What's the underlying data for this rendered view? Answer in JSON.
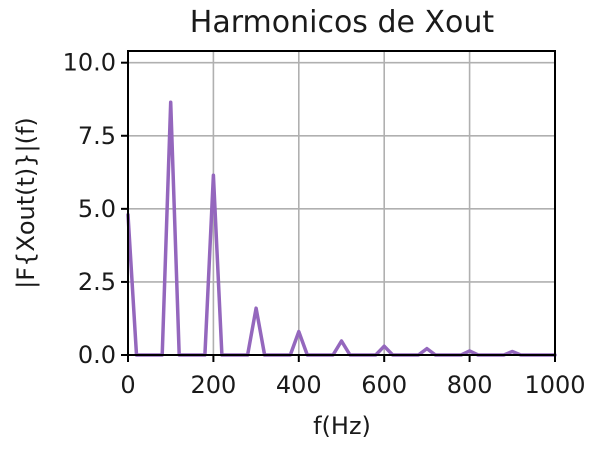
{
  "chart_data": {
    "type": "line",
    "title": "Harmonicos de Xout",
    "xlabel": "f(Hz)",
    "ylabel": "|F{Xout(t)}|(f)",
    "xlim": [
      0,
      1000
    ],
    "ylim": [
      0,
      10.4
    ],
    "xticks": [
      0,
      200,
      400,
      600,
      800,
      1000
    ],
    "xtick_labels": [
      "0",
      "200",
      "400",
      "600",
      "800",
      "1000"
    ],
    "yticks": [
      0,
      2.5,
      5,
      7.5,
      10
    ],
    "ytick_labels": [
      "0.0",
      "2.5",
      "5.0",
      "7.5",
      "10.0"
    ],
    "grid": true,
    "color": "#9467bd",
    "series": [
      {
        "x": [
          0,
          20,
          80,
          100,
          120,
          180,
          200,
          220,
          280,
          300,
          320,
          380,
          400,
          420,
          480,
          500,
          520,
          580,
          600,
          620,
          680,
          700,
          720,
          780,
          800,
          820,
          880,
          900,
          920,
          1000
        ],
        "y": [
          4.8,
          0,
          0,
          8.65,
          0,
          0,
          6.15,
          0,
          0,
          1.6,
          0,
          0,
          0.8,
          0,
          0,
          0.48,
          0,
          0,
          0.3,
          0,
          0,
          0.22,
          0,
          0,
          0.14,
          0,
          0,
          0.12,
          0,
          0
        ]
      }
    ]
  }
}
